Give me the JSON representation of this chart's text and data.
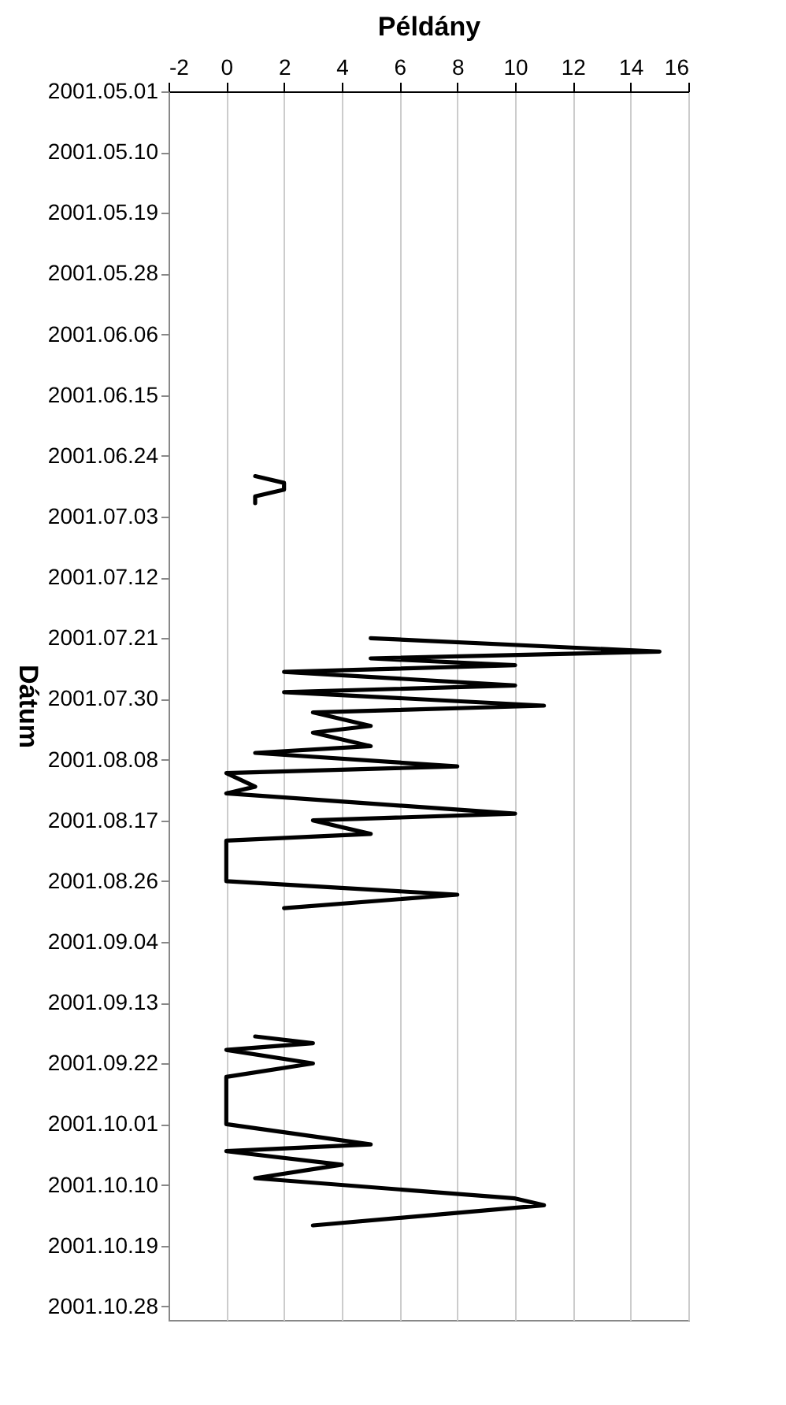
{
  "chart_data": {
    "type": "line",
    "xlabel": "Példány",
    "ylabel": "Dátum",
    "x": [
      "2001-06-27",
      "2001-06-28",
      "2001-06-29",
      "2001-06-30",
      "2001-07-01",
      "2001-07-02",
      "2001-07-21",
      "2001-07-23",
      "2001-07-24",
      "2001-07-25",
      "2001-07-26",
      "2001-07-28",
      "2001-07-29",
      "2001-07-31",
      "2001-08-01",
      "2001-08-03",
      "2001-08-04",
      "2001-08-06",
      "2001-08-07",
      "2001-08-09",
      "2001-08-10",
      "2001-08-12",
      "2001-08-13",
      "2001-08-16",
      "2001-08-17",
      "2001-08-19",
      "2001-08-20",
      "2001-08-26",
      "2001-08-28",
      "2001-08-30",
      "2001-08-31",
      "2001-09-18",
      "2001-09-19",
      "2001-09-20",
      "2001-09-22",
      "2001-09-24",
      "2001-10-01",
      "2001-10-04",
      "2001-10-05",
      "2001-10-07",
      "2001-10-09",
      "2001-10-12",
      "2001-10-13",
      "2001-10-16"
    ],
    "series": [
      {
        "color": "#000000",
        "values": [
          1,
          2,
          2,
          1,
          1,
          null,
          5,
          15,
          5,
          10,
          2,
          10,
          2,
          11,
          3,
          5,
          3,
          5,
          1,
          8,
          0,
          1,
          0,
          10,
          3,
          5,
          0,
          0,
          8,
          2,
          null,
          1,
          3,
          0,
          3,
          0,
          0,
          5,
          0,
          4,
          1,
          10,
          11,
          3
        ]
      }
    ],
    "orientation": "horizontal",
    "ylim": [
      "2001-10-30",
      "2001-05-01"
    ],
    "yticks": [
      {
        "value": "2001-05-01",
        "label": "2001.05.01"
      },
      {
        "value": "2001-05-10",
        "label": "2001.05.10"
      },
      {
        "value": "2001-05-19",
        "label": "2001.05.19"
      },
      {
        "value": "2001-05-28",
        "label": "2001.05.28"
      },
      {
        "value": "2001-06-06",
        "label": "2001.06.06"
      },
      {
        "value": "2001-06-15",
        "label": "2001.06.15"
      },
      {
        "value": "2001-06-24",
        "label": "2001.06.24"
      },
      {
        "value": "2001-07-03",
        "label": "2001.07.03"
      },
      {
        "value": "2001-07-12",
        "label": "2001.07.12"
      },
      {
        "value": "2001-07-21",
        "label": "2001.07.21"
      },
      {
        "value": "2001-07-30",
        "label": "2001.07.30"
      },
      {
        "value": "2001-08-08",
        "label": "2001.08.08"
      },
      {
        "value": "2001-08-17",
        "label": "2001.08.17"
      },
      {
        "value": "2001-08-26",
        "label": "2001.08.26"
      },
      {
        "value": "2001-09-04",
        "label": "2001.09.04"
      },
      {
        "value": "2001-09-13",
        "label": "2001.09.13"
      },
      {
        "value": "2001-09-22",
        "label": "2001.09.22"
      },
      {
        "value": "2001-10-01",
        "label": "2001.10.01"
      },
      {
        "value": "2001-10-10",
        "label": "2001.10.10"
      },
      {
        "value": "2001-10-19",
        "label": "2001.10.19"
      },
      {
        "value": "2001-10-28",
        "label": "2001.10.28"
      }
    ],
    "xlim": [
      -2,
      16
    ],
    "xticks": [
      -2,
      0,
      2,
      4,
      6,
      8,
      10,
      12,
      14,
      16
    ],
    "grid": "x"
  }
}
